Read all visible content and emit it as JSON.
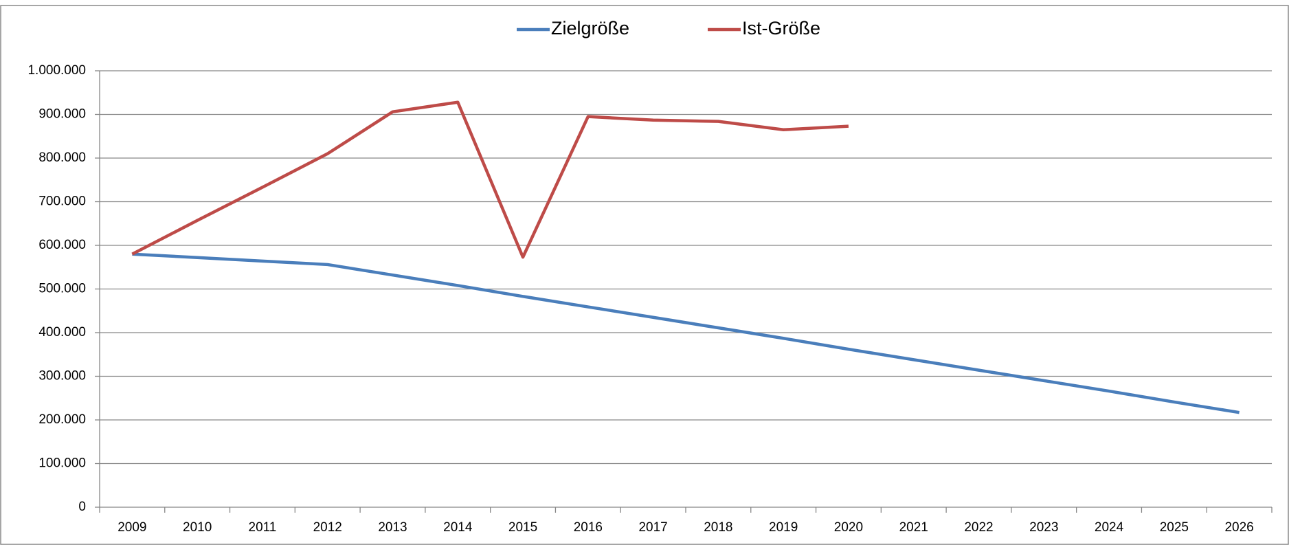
{
  "chart_data": {
    "type": "line",
    "categories": [
      "2009",
      "2010",
      "2011",
      "2012",
      "2013",
      "2014",
      "2015",
      "2016",
      "2017",
      "2018",
      "2019",
      "2020",
      "2021",
      "2022",
      "2023",
      "2024",
      "2025",
      "2026"
    ],
    "series": [
      {
        "name": "Zielgröße",
        "color": "#4a7ebb",
        "values": [
          580000,
          572000,
          564000,
          556000,
          532000,
          508000,
          483000,
          459000,
          435000,
          411000,
          387000,
          362000,
          338000,
          314000,
          290000,
          266000,
          241000,
          217000
        ]
      },
      {
        "name": "Ist-Größe",
        "color": "#be4b48",
        "values": [
          580000,
          657000,
          733000,
          810000,
          906000,
          928000,
          573000,
          895000,
          887000,
          884000,
          865000,
          873000,
          null,
          null,
          null,
          null,
          null,
          null
        ]
      }
    ],
    "ylim": [
      0,
      1000000
    ],
    "yticks": [
      0,
      {
        "value": 100000,
        "label": "100.000"
      },
      {
        "value": 200000,
        "label": "200.000"
      },
      {
        "value": 300000,
        "label": "300.000"
      },
      {
        "value": 400000,
        "label": "400.000"
      },
      {
        "value": 500000,
        "label": "500.000"
      },
      {
        "value": 600000,
        "label": "600.000"
      },
      {
        "value": 700000,
        "label": "700.000"
      },
      {
        "value": 800000,
        "label": "800.000"
      },
      {
        "value": 900000,
        "label": "900.000"
      },
      {
        "value": 1000000,
        "label": "1.000.000"
      }
    ],
    "grid": true,
    "legend": "top"
  }
}
